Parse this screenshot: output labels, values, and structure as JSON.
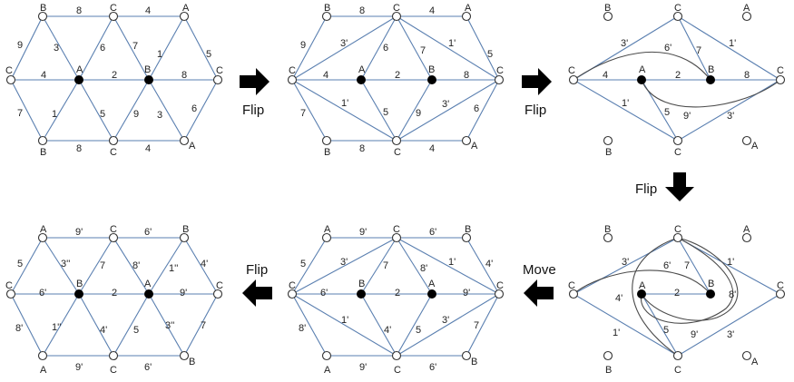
{
  "steps": {
    "flip1": "Flip",
    "flip2": "Flip",
    "flip3": "Flip",
    "move": "Move",
    "flip4": "Flip"
  },
  "panel1": {
    "vertices": [
      "B",
      "C",
      "A",
      "C",
      "A",
      "B",
      "C",
      "B",
      "C",
      "A"
    ],
    "edges": [
      "8",
      "4",
      "9",
      "3",
      "6",
      "7",
      "1",
      "5",
      "4",
      "2",
      "8",
      "7",
      "1",
      "5",
      "9",
      "3",
      "6",
      "8",
      "4"
    ]
  },
  "panel2": {
    "vertices": [
      "B",
      "C",
      "A",
      "C",
      "A",
      "B",
      "C",
      "B",
      "C",
      "A"
    ],
    "edges": [
      "8",
      "4",
      "9",
      "3'",
      "6",
      "7",
      "1'",
      "5",
      "4",
      "2",
      "8",
      "7",
      "1'",
      "5",
      "9",
      "3'",
      "6",
      "8",
      "4"
    ]
  },
  "panel3": {
    "vertices": [
      "B",
      "C",
      "A",
      "C",
      "A",
      "B",
      "C",
      "B",
      "C",
      "A"
    ],
    "edges": [
      "3'",
      "6'",
      "7",
      "1'",
      "4",
      "2",
      "8",
      "1'",
      "5",
      "9'",
      "3'"
    ]
  },
  "panel4": {
    "vertices": [
      "B",
      "C",
      "A",
      "C",
      "A",
      "B",
      "C",
      "B",
      "C",
      "A"
    ],
    "edges": [
      "3'",
      "6'",
      "7",
      "1'",
      "4'",
      "2",
      "8'",
      "1'",
      "5",
      "9'",
      "3'"
    ]
  },
  "panel5": {
    "vertices": [
      "A",
      "C",
      "B",
      "C",
      "B",
      "A",
      "C",
      "A",
      "C",
      "B"
    ],
    "edges": [
      "9'",
      "6'",
      "5",
      "3'",
      "7",
      "8'",
      "1'",
      "4'",
      "6'",
      "2",
      "9'",
      "8'",
      "1'",
      "4'",
      "5",
      "3'",
      "7",
      "9'",
      "6'"
    ]
  },
  "panel6": {
    "vertices": [
      "A",
      "C",
      "B",
      "C",
      "B",
      "A",
      "C",
      "A",
      "C",
      "B"
    ],
    "edges": [
      "9'",
      "6'",
      "5",
      "3''",
      "7",
      "8'",
      "1''",
      "4'",
      "6'",
      "2",
      "9'",
      "8'",
      "1''",
      "4'",
      "5",
      "3''",
      "7",
      "9'",
      "6'"
    ]
  }
}
